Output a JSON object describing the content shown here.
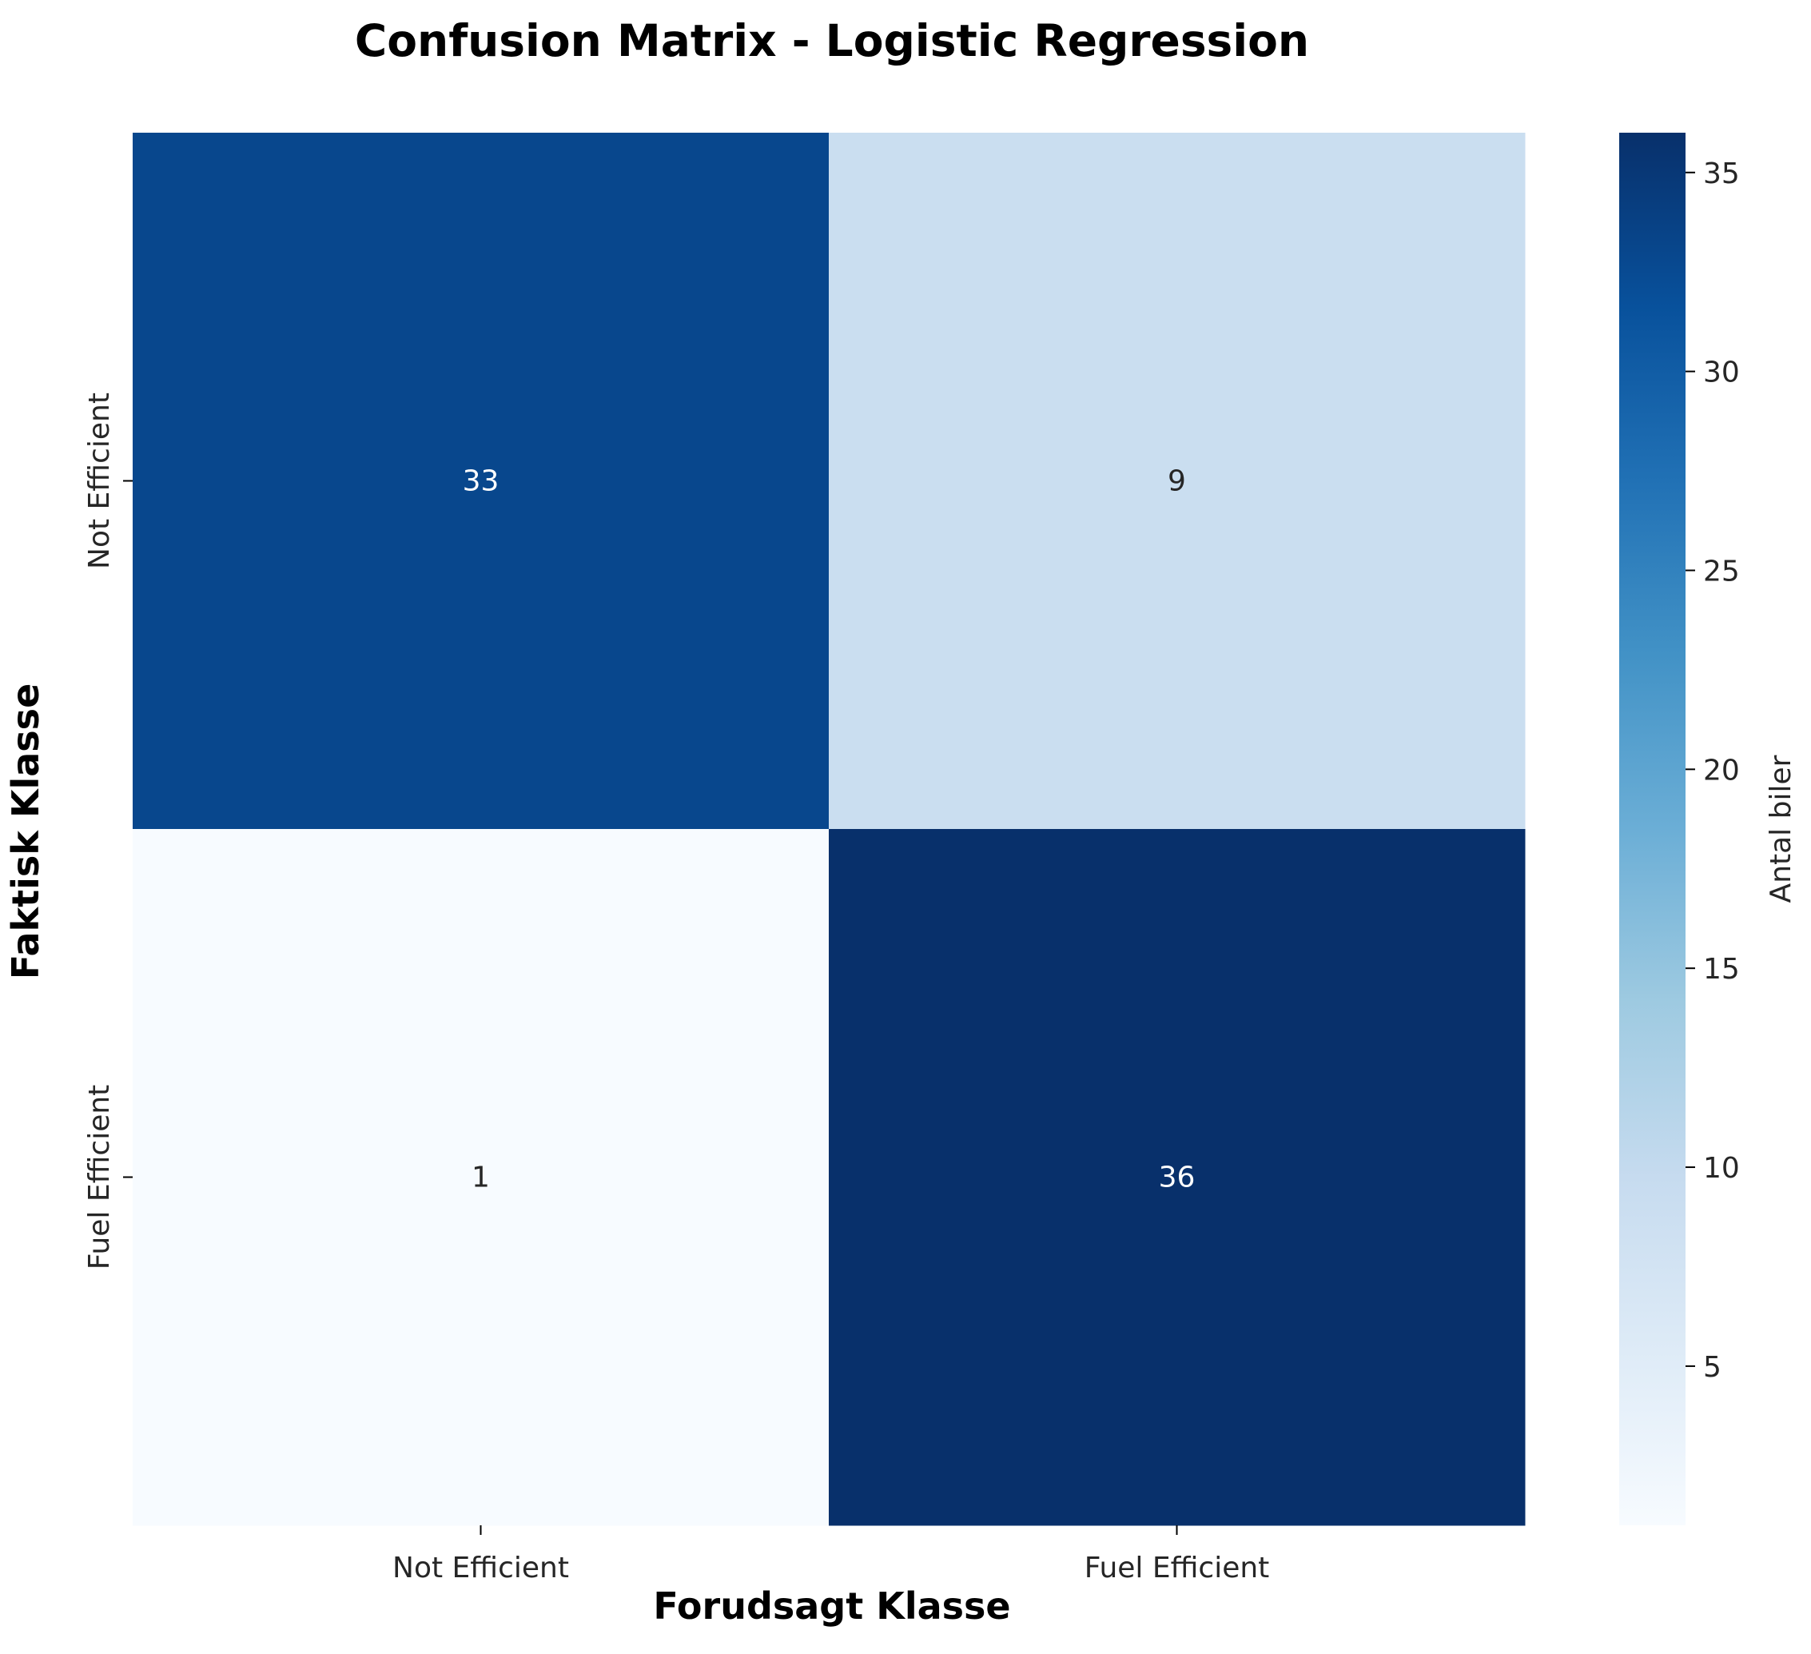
{
  "chart_data": {
    "type": "heatmap",
    "title": "Confusion Matrix - Logistic Regression",
    "xlabel": "Forudsagt Klasse",
    "ylabel": "Faktisk Klasse",
    "x_categories": [
      "Not Efficient",
      "Fuel Efficient"
    ],
    "y_categories": [
      "Not Efficient",
      "Fuel Efficient"
    ],
    "values": [
      [
        33,
        9
      ],
      [
        1,
        36
      ]
    ],
    "colormap": "Blues",
    "colorbar": {
      "label": "Antal biler",
      "range": [
        1,
        36
      ],
      "ticks": [
        5,
        10,
        15,
        20,
        25,
        30,
        35
      ]
    },
    "grid": false,
    "colors": {
      "low": "#f7fbff",
      "high": "#08306b",
      "annotation_light": "#ffffff",
      "annotation_dark": "#262626"
    }
  }
}
